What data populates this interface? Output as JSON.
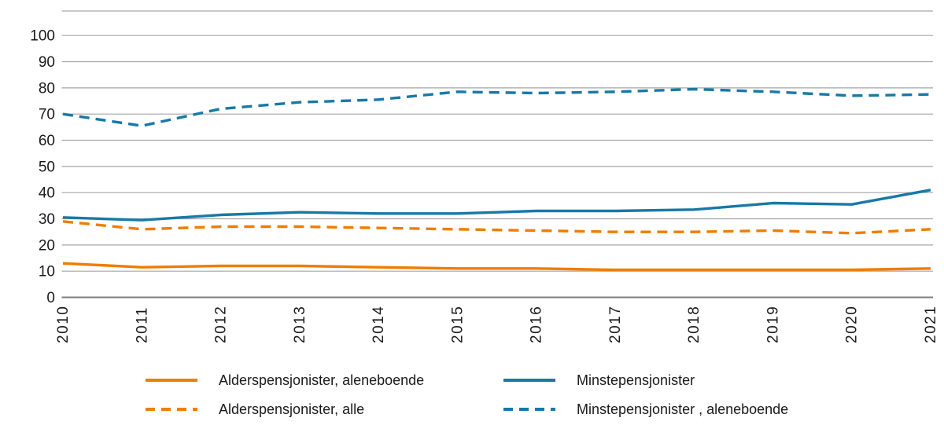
{
  "chart_data": {
    "type": "line",
    "title": "",
    "xlabel": "",
    "ylabel": "",
    "categories": [
      "2010",
      "2011",
      "2012",
      "2013",
      "2014",
      "2015",
      "2016",
      "2017",
      "2018",
      "2019",
      "2020",
      "2021"
    ],
    "y_axis": {
      "min": 0,
      "max": 100,
      "ticks": [
        0,
        10,
        20,
        30,
        40,
        50,
        60,
        70,
        80,
        90,
        100
      ]
    },
    "grid": true,
    "legend_position": "bottom",
    "colors": {
      "orange": "#EF7D00",
      "blue": "#1779A6",
      "gridline": "#A6A6A6",
      "zero_line": "#7F7F7F",
      "text": "#1A1A1A"
    },
    "series": [
      {
        "name": "Alderspensjonister, aleneboende",
        "color": "#EF7D00",
        "line_style": "solid",
        "values": [
          13,
          11.5,
          12,
          12,
          11.5,
          11,
          11,
          10.5,
          10.5,
          10.5,
          10.5,
          11
        ]
      },
      {
        "name": "Alderspensjonister, alle",
        "color": "#EF7D00",
        "line_style": "dashed",
        "values": [
          29,
          26,
          27,
          27,
          26.5,
          26,
          25.5,
          25,
          25,
          25.5,
          24.5,
          26
        ]
      },
      {
        "name": "Minstepensjonister",
        "color": "#1779A6",
        "line_style": "solid",
        "values": [
          30.5,
          29.5,
          31.5,
          32.5,
          32,
          32,
          33,
          33,
          33.5,
          36,
          35.5,
          41
        ]
      },
      {
        "name": "Minstepensjonister , aleneboende",
        "color": "#1779A6",
        "line_style": "dashed",
        "values": [
          70,
          65.5,
          72,
          74.5,
          75.5,
          78.5,
          78,
          78.5,
          79.5,
          78.5,
          77,
          77.5
        ]
      }
    ]
  }
}
